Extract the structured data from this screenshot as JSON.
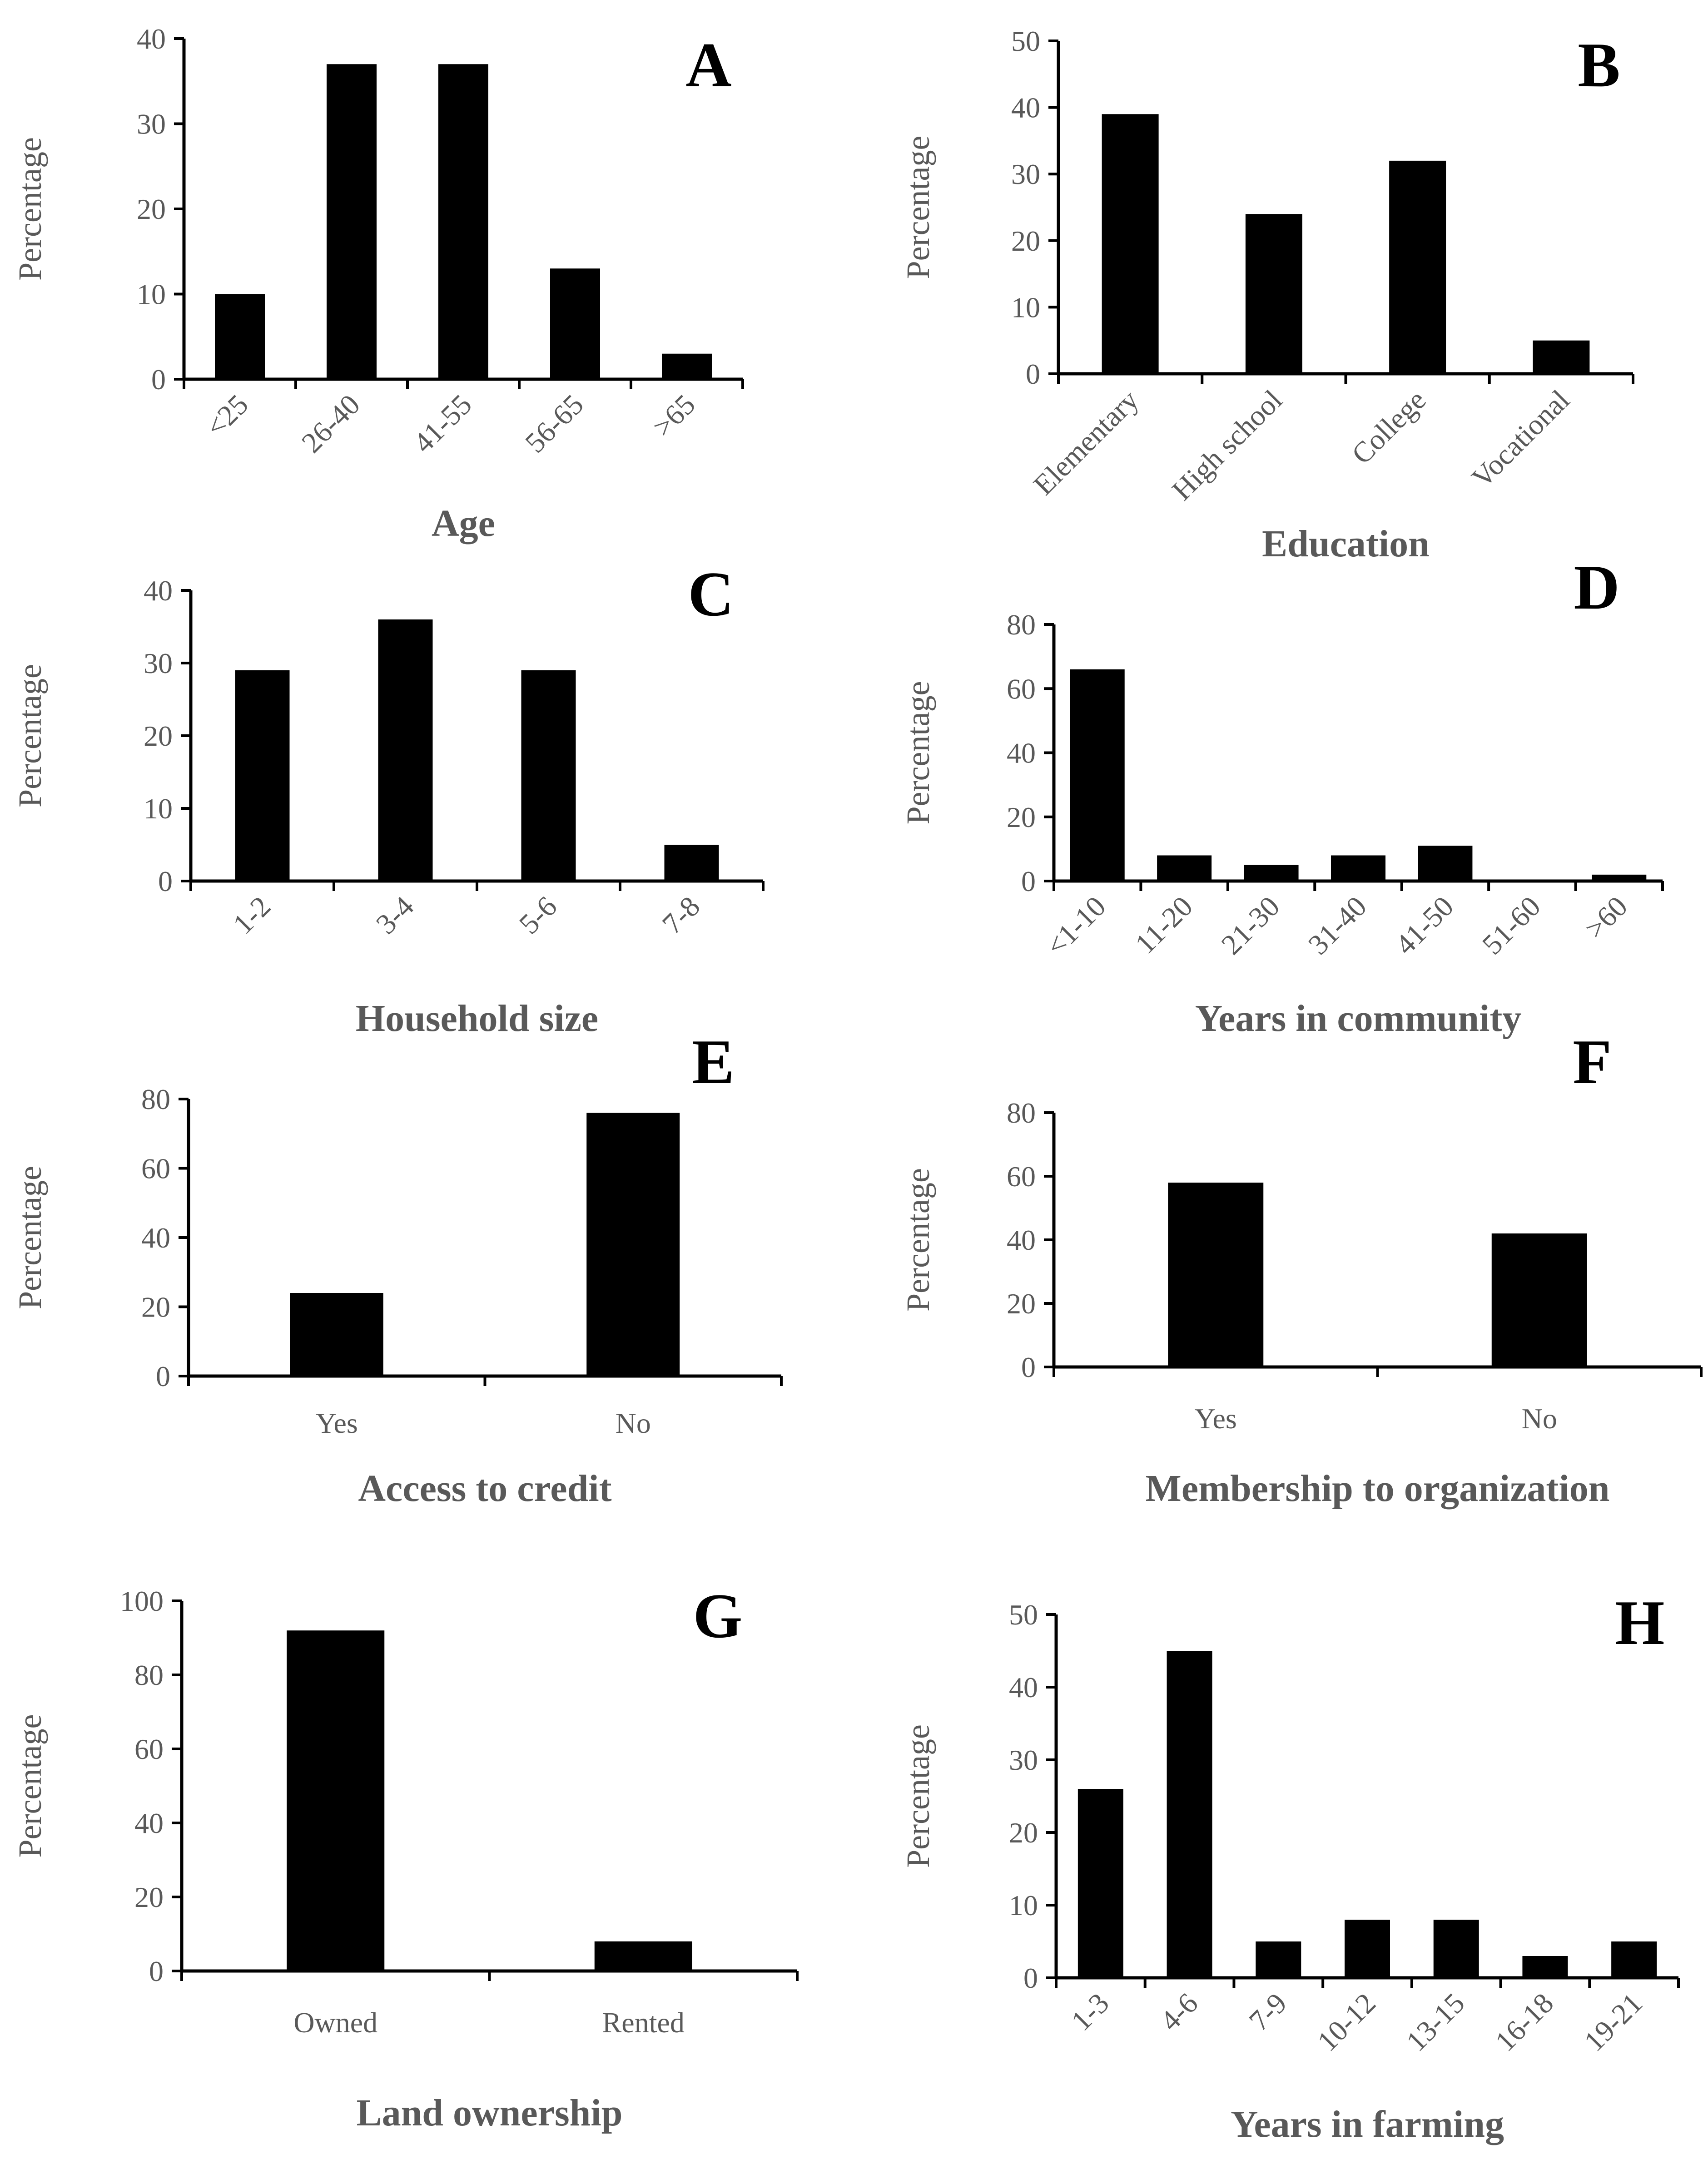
{
  "chart_data": [
    {
      "id": "A",
      "type": "bar",
      "panel_label": "A",
      "xlabel": "Age",
      "ylabel": "Percentage",
      "ylim": [
        0,
        40
      ],
      "yticks": [
        0,
        10,
        20,
        30,
        40
      ],
      "categories": [
        "<25",
        "26-40",
        "41-55",
        "56-65",
        ">65"
      ],
      "values": [
        10,
        37,
        37,
        13,
        3
      ],
      "rotated_labels": true
    },
    {
      "id": "B",
      "type": "bar",
      "panel_label": "B",
      "xlabel": "Education",
      "ylabel": "Percentage",
      "ylim": [
        0,
        50
      ],
      "yticks": [
        0,
        10,
        20,
        30,
        40,
        50
      ],
      "categories": [
        "Elementary",
        "High school",
        "College",
        "Vocational"
      ],
      "values": [
        39,
        24,
        32,
        5
      ],
      "rotated_labels": true
    },
    {
      "id": "C",
      "type": "bar",
      "panel_label": "C",
      "xlabel": "Household size",
      "ylabel": "Percentage",
      "ylim": [
        0,
        40
      ],
      "yticks": [
        0,
        10,
        20,
        30,
        40
      ],
      "categories": [
        "1-2",
        "3-4",
        "5-6",
        "7-8"
      ],
      "values": [
        29,
        36,
        29,
        5
      ],
      "rotated_labels": true
    },
    {
      "id": "D",
      "type": "bar",
      "panel_label": "D",
      "xlabel": "Years in community",
      "ylabel": "Percentage",
      "ylim": [
        0,
        80
      ],
      "yticks": [
        0,
        20,
        40,
        60,
        80
      ],
      "categories": [
        "<1-10",
        "11-20",
        "21-30",
        "31-40",
        "41-50",
        "51-60",
        ">60"
      ],
      "values": [
        66,
        8,
        5,
        8,
        11,
        0,
        2
      ],
      "rotated_labels": true
    },
    {
      "id": "E",
      "type": "bar",
      "panel_label": "E",
      "xlabel": "Access to credit",
      "ylabel": "Percentage",
      "ylim": [
        0,
        80
      ],
      "yticks": [
        0,
        20,
        40,
        60,
        80
      ],
      "categories": [
        "Yes",
        "No"
      ],
      "values": [
        24,
        76
      ],
      "rotated_labels": false
    },
    {
      "id": "F",
      "type": "bar",
      "panel_label": "F",
      "xlabel": "Membership to organization",
      "ylabel": "Percentage",
      "ylim": [
        0,
        80
      ],
      "yticks": [
        0,
        20,
        40,
        60,
        80
      ],
      "categories": [
        "Yes",
        "No"
      ],
      "values": [
        58,
        42
      ],
      "rotated_labels": false
    },
    {
      "id": "G",
      "type": "bar",
      "panel_label": "G",
      "xlabel": "Land ownership",
      "ylabel": "Percentage",
      "ylim": [
        0,
        100
      ],
      "yticks": [
        0,
        20,
        40,
        60,
        80,
        100
      ],
      "categories": [
        "Owned",
        "Rented"
      ],
      "values": [
        92,
        8
      ],
      "rotated_labels": false
    },
    {
      "id": "H",
      "type": "bar",
      "panel_label": "H",
      "xlabel": "Years in farming",
      "ylabel": "Percentage",
      "ylim": [
        0,
        50
      ],
      "yticks": [
        0,
        10,
        20,
        30,
        40,
        50
      ],
      "categories": [
        "1-3",
        "4-6",
        "7-9",
        "10-12",
        "13-15",
        "16-18",
        "19-21"
      ],
      "values": [
        26,
        45,
        5,
        8,
        8,
        3,
        5
      ],
      "rotated_labels": true
    }
  ]
}
